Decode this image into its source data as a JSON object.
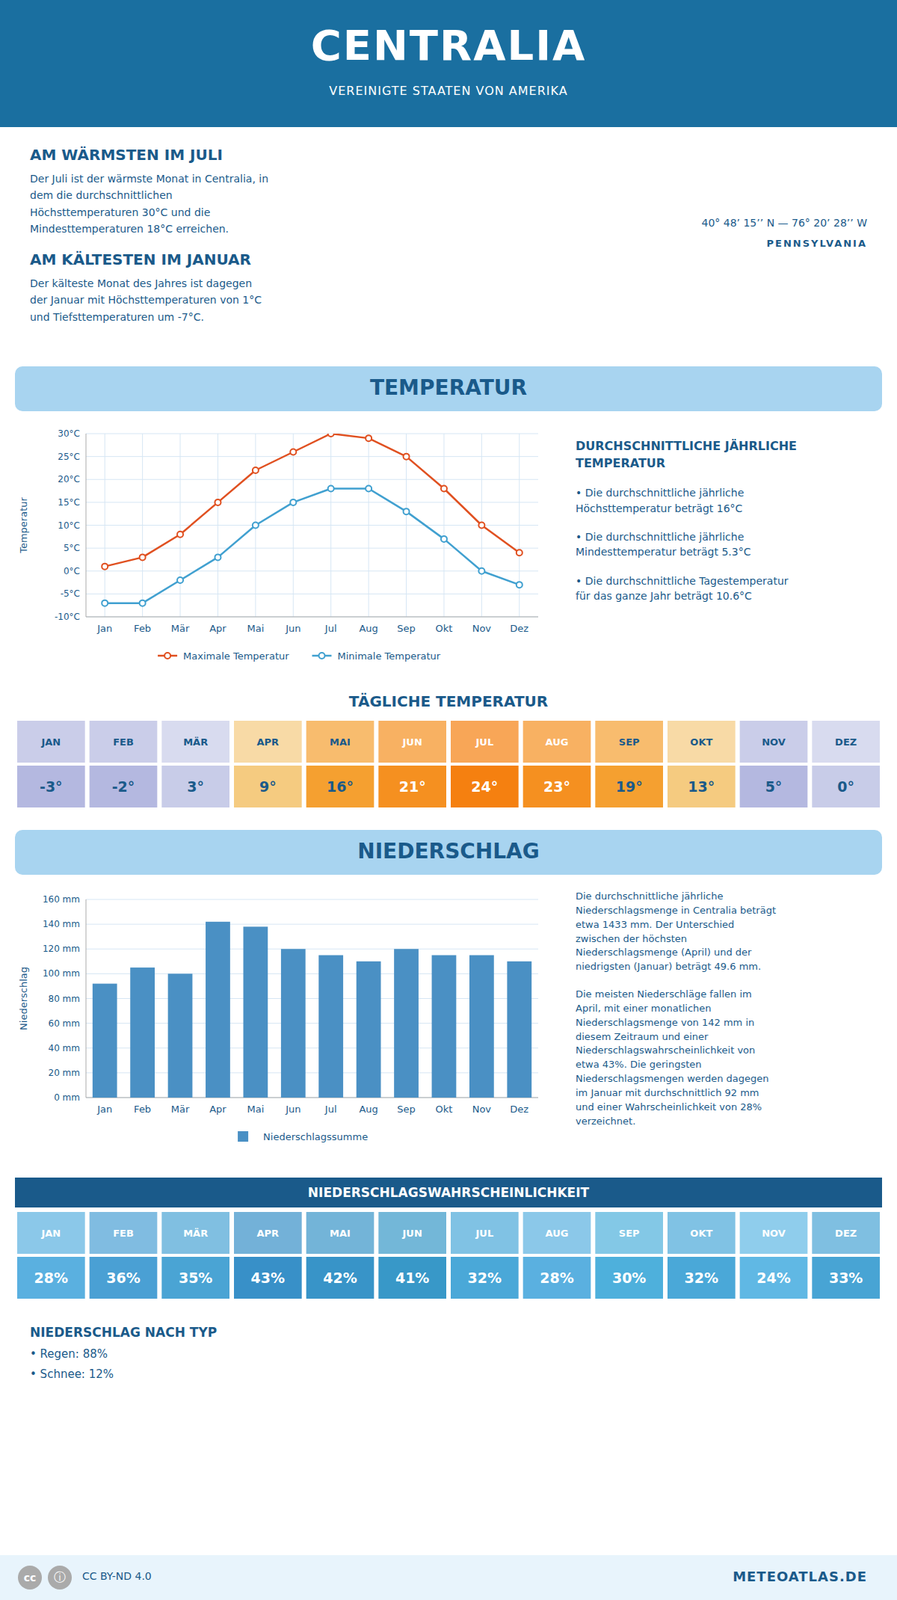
{
  "title": "CENTRALIA",
  "subtitle": "VEREINIGTE STAATEN VON AMERIKA",
  "annotations": [
    "AM WÄRMSTEN IM JULI",
    "Der Juli ist der wärmste Monat in Centralia, in\ndem die durchschnittlichen\nHöchsttemperaturen 30°C und die\nMindesttemperaturen 18°C erreichen.",
    "AM KÄLTESTEN IM JANUAR",
    "Der kälteste Monat des Jahres ist dagegen\nder Januar mit Höchsttemperaturen von 1°C\nund Tiefsttemperaturen um -7°C.",
    "40° 48’ 15’’ N — 76° 20’ 28’’ W",
    "PENNSYLVANIA",
    "cc",
    "ⓘ",
    "CC BY-ND 4.0",
    "METEOATLAS.DE"
  ],
  "chart_data": [
    {
      "type": "line",
      "title": "TEMPERATUR",
      "y_label": "Temperatur",
      "categories": [
        "Jan",
        "Feb",
        "Mär",
        "Apr",
        "Mai",
        "Jun",
        "Jul",
        "Aug",
        "Sep",
        "Okt",
        "Nov",
        "Dez"
      ],
      "series": [
        {
          "name": "Maximale Temperatur",
          "color": "#e05020",
          "marker": "circle",
          "values": [
            1,
            3,
            8,
            15,
            22,
            26,
            30,
            29,
            25,
            18,
            10,
            4
          ]
        },
        {
          "name": "Minimale Temperatur",
          "color": "#40a0d0",
          "marker": "circle",
          "values": [
            -7,
            -7,
            -2,
            3,
            10,
            15,
            18,
            18,
            13,
            7,
            0,
            -3
          ]
        }
      ],
      "ylim": [
        -10,
        30
      ],
      "yticks": [
        {
          "value": -10,
          "label": "-10°C"
        },
        {
          "value": -5,
          "label": "-5°C"
        },
        {
          "value": 0,
          "label": "0°C"
        },
        {
          "value": 5,
          "label": "5°C"
        },
        {
          "value": 10,
          "label": "10°C"
        },
        {
          "value": 15,
          "label": "15°C"
        },
        {
          "value": 20,
          "label": "20°C"
        },
        {
          "value": 25,
          "label": "25°C"
        },
        {
          "value": 30,
          "label": "30°C"
        }
      ],
      "grid": true,
      "legend": "bottom",
      "annotations": [
        "DURCHSCHNITTLICHE JÄHRLICHE\nTEMPERATUR",
        "• Die durchschnittliche jährliche\nHöchsttemperatur beträgt 16°C",
        "• Die durchschnittliche jährliche\nMindesttemperatur beträgt 5.3°C",
        "• Die durchschnittliche Tagestemperatur\nfür das ganze Jahr beträgt 10.6°C"
      ]
    },
    {
      "type": "table",
      "title": "TÄGLICHE TEMPERATUR",
      "categories": [
        "JAN",
        "FEB",
        "MÄR",
        "APR",
        "MAI",
        "JUN",
        "JUL",
        "AUG",
        "SEP",
        "OKT",
        "NOV",
        "DEZ"
      ],
      "values": [
        -3,
        -2,
        3,
        9,
        16,
        21,
        24,
        23,
        19,
        13,
        5,
        0
      ],
      "value_labels": [
        "-3°",
        "-2°",
        "3°",
        "9°",
        "16°",
        "21°",
        "24°",
        "23°",
        "19°",
        "13°",
        "5°",
        "0°"
      ],
      "colors": [
        "#b4b8e0",
        "#b4b8e0",
        "#c8cce8",
        "#f5cb80",
        "#f5a030",
        "#f59020",
        "#f58010",
        "#f59020",
        "#f5a030",
        "#f5cb80",
        "#b4b8e0",
        "#c8cce8"
      ]
    },
    {
      "type": "bar",
      "title": "NIEDERSCHLAG",
      "y_label": "Niederschlag",
      "categories": [
        "Jan",
        "Feb",
        "Mär",
        "Apr",
        "Mai",
        "Jun",
        "Jul",
        "Aug",
        "Sep",
        "Okt",
        "Nov",
        "Dez"
      ],
      "series": [
        {
          "name": "Niederschlagssumme",
          "color": "#4a90c4",
          "values": [
            92,
            105,
            100,
            142,
            138,
            120,
            115,
            110,
            120,
            115,
            115,
            110
          ]
        }
      ],
      "ylim": [
        0,
        160
      ],
      "yticks": [
        {
          "value": 0,
          "label": "0 mm"
        },
        {
          "value": 20,
          "label": "20 mm"
        },
        {
          "value": 40,
          "label": "40 mm"
        },
        {
          "value": 60,
          "label": "60 mm"
        },
        {
          "value": 80,
          "label": "80 mm"
        },
        {
          "value": 100,
          "label": "100 mm"
        },
        {
          "value": 120,
          "label": "120 mm"
        },
        {
          "value": 140,
          "label": "140 mm"
        },
        {
          "value": 160,
          "label": "160 mm"
        }
      ],
      "grid": true,
      "legend": "bottom",
      "annotations": [
        "Die durchschnittliche jährliche\nNiederschlagsmenge in Centralia beträgt\netwa 1433 mm. Der Unterschied\nzwischen der höchsten\nNiederschlagsmenge (April) und der\nniedrigsten (Januar) beträgt 49.6 mm.",
        "Die meisten Niederschläge fallen im\nApril, mit einer monatlichen\nNiederschlagsmenge von 142 mm in\ndiesem Zeitraum und einer\nNiederschlagswahrscheinlichkeit von\netwa 43%. Die geringsten\nNiederschlagsmengen werden dagegen\nim Januar mit durchschnittlich 92 mm\nund einer Wahrscheinlichkeit von 28%\nverzeichnet."
      ]
    },
    {
      "type": "table",
      "title": "NIEDERSCHLAGSWAHRSCHEINLICHKEIT",
      "categories": [
        "JAN",
        "FEB",
        "MÄR",
        "APR",
        "MAI",
        "JUN",
        "JUL",
        "AUG",
        "SEP",
        "OKT",
        "NOV",
        "DEZ"
      ],
      "values": [
        28,
        36,
        35,
        43,
        42,
        41,
        32,
        28,
        30,
        32,
        24,
        33
      ],
      "value_labels": [
        "28%",
        "36%",
        "35%",
        "43%",
        "42%",
        "41%",
        "32%",
        "28%",
        "30%",
        "32%",
        "24%",
        "33%"
      ],
      "colors": [
        "#5ab0e0",
        "#4aa0d4",
        "#4aa4d4",
        "#3890c8",
        "#3894c8",
        "#3898c8",
        "#4aa8d8",
        "#5ab0e0",
        "#4eb0dc",
        "#4aa8d8",
        "#60b8e4",
        "#48a4d4"
      ],
      "annotations": [
        "NIEDERSCHLAG NACH TYP",
        "• Regen: 88%",
        "• Schnee: 12%"
      ]
    }
  ]
}
